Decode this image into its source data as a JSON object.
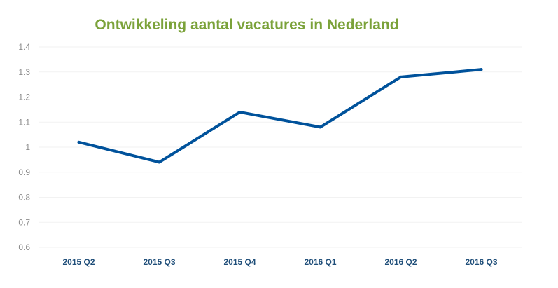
{
  "chart_data": {
    "type": "line",
    "title": "Ontwikkeling aantal vacatures in Nederland",
    "categories": [
      "2015 Q2",
      "2015 Q3",
      "2015 Q4",
      "2016 Q1",
      "2016 Q2",
      "2016 Q3"
    ],
    "series": [
      {
        "values": [
          1.02,
          0.94,
          1.14,
          1.08,
          1.28,
          1.31
        ],
        "color": "#00529b"
      }
    ],
    "yticks": [
      "0.6",
      "0.7",
      "0.8",
      "0.9",
      "1",
      "1.1",
      "1.2",
      "1.3",
      "1.4"
    ],
    "ylim": [
      0.6,
      1.4
    ],
    "xlabel": "",
    "ylabel": "",
    "grid": true,
    "legend": "none"
  }
}
